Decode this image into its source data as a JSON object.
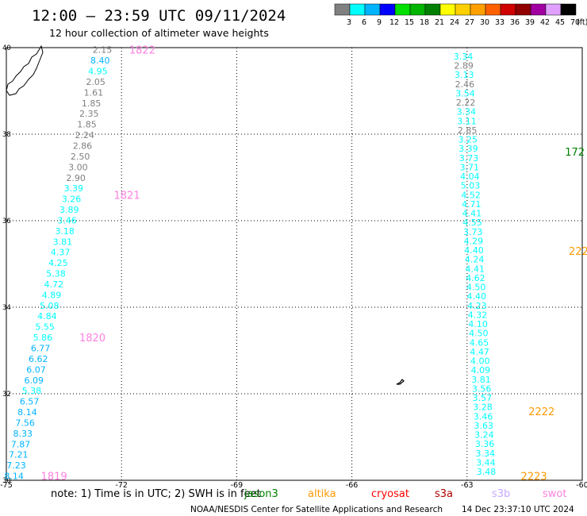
{
  "header": {
    "title": "12:00 – 23:59 UTC 09/11/2024",
    "subtitle": "12 hour collection of altimeter wave heights",
    "unit": "(ft)"
  },
  "scale": {
    "labels": [
      "3",
      "6",
      "9",
      "12",
      "15",
      "18",
      "21",
      "24",
      "27",
      "30",
      "33",
      "36",
      "39",
      "42",
      "45",
      "70"
    ],
    "colors": [
      "#808080",
      "#00ffff",
      "#00b4ff",
      "#0000ff",
      "#00e000",
      "#00b400",
      "#008000",
      "#ffff00",
      "#ffd000",
      "#ffa000",
      "#ff6000",
      "#d00000",
      "#900000",
      "#a000a0",
      "#e0a0ff",
      "#000000"
    ]
  },
  "footer": {
    "note_prefix": "note:  1) Time is in UTC; 2) SWH is in feet",
    "satellites": [
      {
        "name": "jason3",
        "color": "#008000"
      },
      {
        "name": "altika",
        "color": "#ff9900"
      },
      {
        "name": "cryosat",
        "color": "#ff0000"
      },
      {
        "name": "s3a",
        "color": "#b00000"
      },
      {
        "name": "s3b",
        "color": "#c8a8ff"
      },
      {
        "name": "swot",
        "color": "#ff80e0"
      }
    ],
    "credit": "NOAA/NESDIS Center for Satellite Applications and Research",
    "timestamp": "14 Dec 23:37:10 UTC 2024"
  },
  "chart_data": {
    "type": "scatter",
    "xlim": [
      -75,
      -60
    ],
    "ylim": [
      30,
      40
    ],
    "x_ticks": [
      "-75",
      "-72",
      "-69",
      "-66",
      "-63",
      "-60"
    ],
    "y_ticks": [
      "40",
      "38",
      "36",
      "34",
      "32",
      "30"
    ],
    "grid": true,
    "tracks": [
      {
        "lon_start": -74.8,
        "lat_start": 30.1,
        "lon_end": -72.5,
        "lat_end": 39.95,
        "values": [
          "8.14",
          "7.23",
          "7.21",
          "7.87",
          "8.33",
          "7.56",
          "8.14",
          "6.57",
          "5.38",
          "6.09",
          "6.07",
          "6.62",
          "6.77",
          "5.86",
          "5.55",
          "4.84",
          "5.08",
          "4.89",
          "4.72",
          "5.38",
          "4.25",
          "4.37",
          "3.81",
          "3.18",
          "3.46",
          "3.89",
          "3.26",
          "3.39",
          "2.90",
          "3.00",
          "2.50",
          "2.86",
          "2.24",
          "1.85",
          "2.35",
          "1.85",
          "1.61",
          "2.05",
          "4.95",
          "8.40",
          "2.15"
        ]
      },
      {
        "lon_start": -62.5,
        "lat_start": 30.2,
        "lon_end": -63.1,
        "lat_end": 39.8,
        "values": [
          "3.48",
          "3.44",
          "3.34",
          "3.36",
          "3.24",
          "3.63",
          "3.46",
          "3.28",
          "3.57",
          "3.56",
          "3.81",
          "4.09",
          "4.00",
          "4.47",
          "4.65",
          "4.50",
          "4.10",
          "4.32",
          "4.23",
          "4.40",
          "4.50",
          "4.62",
          "4.41",
          "4.24",
          "4.40",
          "4.29",
          "3.73",
          "4.55",
          "4.41",
          "4.71",
          "4.52",
          "5.03",
          "4.04",
          "3.71",
          "3.73",
          "3.39",
          "3.25",
          "2.85",
          "3.11",
          "3.34",
          "2.22",
          "3.54",
          "2.46",
          "3.13",
          "2.89",
          "3.34"
        ]
      }
    ],
    "time_labels": [
      {
        "text": "1822",
        "lon": -71.8,
        "lat": 39.95,
        "sat": "swot"
      },
      {
        "text": "1821",
        "lon": -72.2,
        "lat": 36.6,
        "sat": "swot"
      },
      {
        "text": "1820",
        "lon": -73.1,
        "lat": 33.3,
        "sat": "swot"
      },
      {
        "text": "1819",
        "lon": -74.1,
        "lat": 30.1,
        "sat": "swot"
      },
      {
        "text": "2222",
        "lon": -61.4,
        "lat": 31.6,
        "sat": "altika"
      },
      {
        "text": "2223",
        "lon": -61.6,
        "lat": 30.1,
        "sat": "altika"
      },
      {
        "text": "222",
        "lon": -60.35,
        "lat": 35.3,
        "sat": "altika"
      },
      {
        "text": "172",
        "lon": -60.45,
        "lat": 37.6,
        "sat": "jason3"
      }
    ]
  }
}
